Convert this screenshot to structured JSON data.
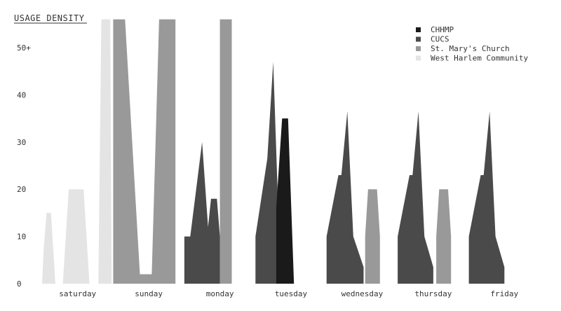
{
  "chart_data": {
    "type": "area",
    "title": "USAGE DENSITY",
    "xlabel": "",
    "ylabel": "",
    "ylim": [
      0,
      50
    ],
    "y_ticks": [
      {
        "value": 0,
        "label": "0"
      },
      {
        "value": 10,
        "label": "10"
      },
      {
        "value": 20,
        "label": "20"
      },
      {
        "value": 30,
        "label": "30"
      },
      {
        "value": 40,
        "label": "40"
      },
      {
        "value": 50,
        "label": "50+"
      }
    ],
    "categories": [
      "saturday",
      "sunday",
      "monday",
      "tuesday",
      "wednesday",
      "thursday",
      "friday"
    ],
    "x_unit_note": "x positions below are hours-of-week index: 0 = saturday start, each day = 24",
    "legend_placement": "top-right",
    "grid": false,
    "series": [
      {
        "name": "CHHMP",
        "color": "#1a1a1a",
        "segments": [
          [
            [
              79,
              0
            ],
            [
              79,
              16
            ],
            [
              81,
              35
            ],
            [
              83,
              35
            ],
            [
              85,
              0
            ]
          ]
        ]
      },
      {
        "name": "CUCS",
        "color": "#4a4a4a",
        "segments": [
          [
            [
              48,
              0
            ],
            [
              48,
              10
            ],
            [
              50,
              10
            ],
            [
              54,
              30
            ],
            [
              56,
              12
            ],
            [
              57,
              18
            ],
            [
              59,
              18
            ],
            [
              60,
              10
            ],
            [
              60,
              0
            ]
          ],
          [
            [
              72,
              0
            ],
            [
              72,
              10
            ],
            [
              76,
              26.5
            ],
            [
              78,
              47
            ],
            [
              80,
              10
            ],
            [
              83,
              3.5
            ],
            [
              83,
              0
            ]
          ],
          [
            [
              96,
              0
            ],
            [
              96,
              10
            ],
            [
              100,
              23
            ],
            [
              101,
              23
            ],
            [
              103,
              36.5
            ],
            [
              105,
              10
            ],
            [
              108.5,
              3.5
            ],
            [
              108.5,
              0
            ]
          ],
          [
            [
              120,
              0
            ],
            [
              120,
              10
            ],
            [
              124,
              23
            ],
            [
              125,
              23
            ],
            [
              127,
              36.5
            ],
            [
              129,
              10
            ],
            [
              132,
              3.5
            ],
            [
              132,
              0
            ]
          ],
          [
            [
              144,
              0
            ],
            [
              144,
              10
            ],
            [
              148,
              23
            ],
            [
              149,
              23
            ],
            [
              151,
              36.5
            ],
            [
              153,
              10
            ],
            [
              156,
              3.5
            ],
            [
              156,
              0
            ]
          ]
        ]
      },
      {
        "name": "St. Mary's Church",
        "color": "#999999",
        "segments": [
          [
            [
              24,
              0
            ],
            [
              24,
              56
            ],
            [
              28,
              56
            ],
            [
              33,
              2
            ],
            [
              37,
              2
            ],
            [
              39.5,
              56
            ],
            [
              45,
              56
            ],
            [
              45,
              0
            ]
          ],
          [
            [
              60,
              0
            ],
            [
              60,
              56
            ],
            [
              64,
              56
            ],
            [
              64,
              0
            ]
          ],
          [
            [
              109,
              0
            ],
            [
              109,
              10
            ],
            [
              110,
              20
            ],
            [
              113,
              20
            ],
            [
              114,
              10
            ],
            [
              114,
              0
            ]
          ],
          [
            [
              133,
              0
            ],
            [
              133,
              10
            ],
            [
              134,
              20
            ],
            [
              137,
              20
            ],
            [
              138,
              10
            ],
            [
              138,
              0
            ]
          ]
        ]
      },
      {
        "name": "West Harlem Community",
        "color": "#e4e4e4",
        "segments": [
          [
            [
              0,
              0
            ],
            [
              0.5,
              7
            ],
            [
              1.5,
              15
            ],
            [
              3,
              15
            ],
            [
              4.5,
              0
            ]
          ],
          [
            [
              7,
              0
            ],
            [
              9,
              20
            ],
            [
              14,
              20
            ],
            [
              16,
              0
            ]
          ],
          [
            [
              19,
              0
            ],
            [
              20,
              56
            ],
            [
              23,
              56
            ],
            [
              23.5,
              0
            ]
          ]
        ]
      }
    ]
  }
}
